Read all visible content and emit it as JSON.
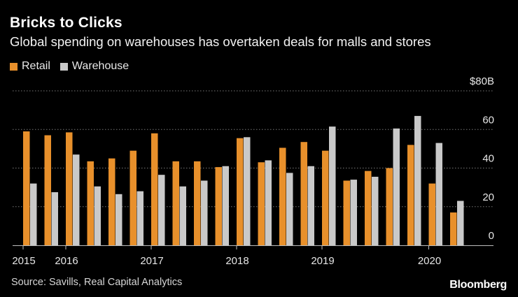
{
  "header": {
    "title": "Bricks to Clicks",
    "subtitle": "Global spending on warehouses has overtaken deals for malls and stores"
  },
  "legend": {
    "retail_label": "Retail",
    "warehouse_label": "Warehouse"
  },
  "colors": {
    "retail": "#e8902b",
    "warehouse": "#c9c9c9",
    "grid": "#777777",
    "axis": "#bdbdbd",
    "background": "#000000"
  },
  "footer": {
    "source": "Source: Savills, Real Capital Analytics",
    "brand": "Bloomberg"
  },
  "chart_data": {
    "type": "bar",
    "title": "Bricks to Clicks",
    "subtitle": "Global spending on warehouses has overtaken deals for malls and stores",
    "xlabel": "",
    "ylabel": "",
    "y_unit_label": "$80B",
    "ylim": [
      0,
      80
    ],
    "yticks": [
      0,
      20,
      40,
      60,
      80
    ],
    "ytick_labels": [
      "0",
      "20",
      "40",
      "60",
      "$80B"
    ],
    "grid": true,
    "legend_position": "top-left",
    "categories": [
      "2015 Q1",
      "2015 Q2",
      "2015 Q3",
      "2015 Q4",
      "2016 Q1",
      "2016 Q2",
      "2016 Q3",
      "2016 Q4",
      "2017 Q1",
      "2017 Q2",
      "2017 Q3",
      "2017 Q4",
      "2018 Q1",
      "2018 Q2",
      "2018 Q3",
      "2018 Q4",
      "2019 Q1",
      "2019 Q2",
      "2019 Q3",
      "2019 Q4",
      "2020 Q1",
      "2020 Q2"
    ],
    "x_tick_labels": [
      {
        "label": "2015",
        "index": 0
      },
      {
        "label": "2016",
        "index": 2
      },
      {
        "label": "2017",
        "index": 6
      },
      {
        "label": "2018",
        "index": 10
      },
      {
        "label": "2019",
        "index": 14
      },
      {
        "label": "2020",
        "index": 19
      }
    ],
    "series": [
      {
        "name": "Retail",
        "values": [
          59,
          57,
          58.5,
          43.5,
          45,
          49,
          58,
          43.5,
          43.5,
          40.5,
          55.5,
          43,
          50.5,
          53.5,
          49,
          33.5,
          38.5,
          40,
          52,
          32,
          17,
          null
        ]
      },
      {
        "name": "Warehouse",
        "values": [
          32,
          27.5,
          47,
          30.5,
          26.5,
          28,
          36.5,
          30.5,
          33.5,
          41,
          56,
          44,
          37.5,
          41,
          61.5,
          34,
          35.5,
          60.5,
          67,
          53,
          23,
          null
        ]
      }
    ]
  }
}
